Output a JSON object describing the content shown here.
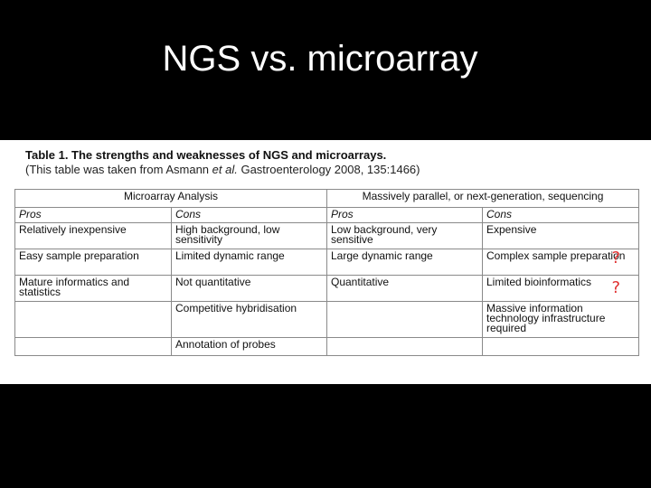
{
  "slide": {
    "title": "NGS vs. microarray"
  },
  "caption": {
    "line1": "Table 1. The strengths and weaknesses of NGS and microarrays.",
    "line2_pre": "(This table was taken from Asmann ",
    "line2_italic": "et al.",
    "line2_post": " Gastroenterology 2008, 135:1466)"
  },
  "table": {
    "groups": [
      "Microarray Analysis",
      "Massively parallel, or next-generation, sequencing"
    ],
    "subheaders": [
      "Pros",
      "Cons",
      "Pros",
      "Cons"
    ],
    "rows": [
      [
        "Relatively inexpensive",
        "High background, low sensitivity",
        "Low background, very sensitive",
        "Expensive"
      ],
      [
        "Easy sample preparation",
        "Limited dynamic range",
        "Large dynamic range",
        "Complex sample preparation"
      ],
      [
        "Mature informatics and statistics",
        "Not quantitative",
        "Quantitative",
        "Limited bioinformatics"
      ],
      [
        "",
        "Competitive hybridisation",
        "",
        "Massive information technology infrastructure required"
      ],
      [
        "",
        "Annotation of probes",
        "",
        ""
      ]
    ]
  },
  "annotations": {
    "question_mark_1": "?",
    "question_mark_2": "?",
    "color": "#e03030"
  }
}
